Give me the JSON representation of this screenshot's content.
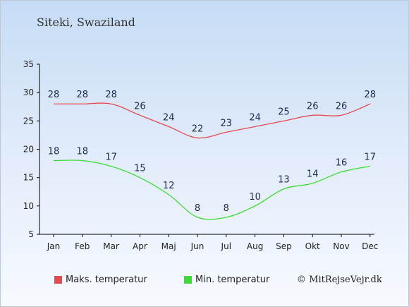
{
  "title": "Siteki, Swaziland",
  "credit": "© MitRejseVejr.dk",
  "colors": {
    "max": "#e8494e",
    "min": "#3ddc34"
  },
  "chart_data": {
    "type": "line",
    "categories": [
      "Jan",
      "Feb",
      "Mar",
      "Apr",
      "Maj",
      "Jun",
      "Jul",
      "Aug",
      "Sep",
      "Okt",
      "Nov",
      "Dec"
    ],
    "series": [
      {
        "name": "Maks. temperatur",
        "values": [
          28,
          28,
          28,
          26,
          24,
          22,
          23,
          24,
          25,
          26,
          26,
          28
        ]
      },
      {
        "name": "Min. temperatur",
        "values": [
          18,
          18,
          17,
          15,
          12,
          8,
          8,
          10,
          13,
          14,
          16,
          17
        ]
      }
    ],
    "ylim": [
      5,
      35
    ],
    "yticks": [
      5,
      10,
      15,
      20,
      25,
      30,
      35
    ],
    "legend": "bottom",
    "grid": false
  }
}
